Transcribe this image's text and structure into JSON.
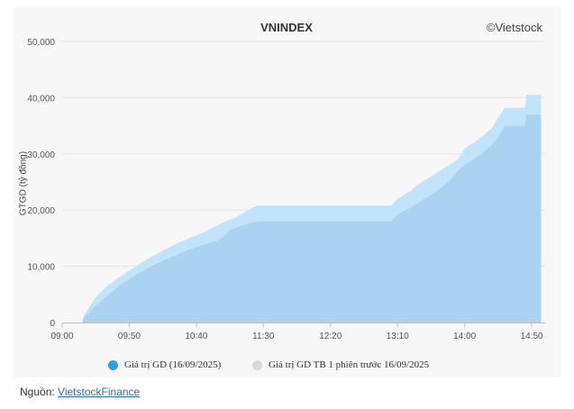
{
  "chart_data": {
    "type": "area",
    "title": "VNINDEX",
    "credit": "©Vietstock",
    "ylabel": "GTGD (tỷ đồng)",
    "xlabel": "",
    "ylim": [
      0,
      50000
    ],
    "yticks": [
      "0",
      "10,000",
      "20,000",
      "30,000",
      "40,000",
      "50,000"
    ],
    "xticks": [
      "09:00",
      "09:50",
      "10:40",
      "11:30",
      "12:20",
      "13:10",
      "14:00",
      "14:50"
    ],
    "grid": true,
    "legend_position": "bottom",
    "series": [
      {
        "name": "Giá trị GD (16/09/2025)",
        "color": "#a9d3f0",
        "points": [
          [
            "09:15",
            0
          ],
          [
            "09:16",
            800
          ],
          [
            "09:25",
            3000
          ],
          [
            "09:35",
            5000
          ],
          [
            "09:45",
            7000
          ],
          [
            "09:55",
            8500
          ],
          [
            "10:05",
            9800
          ],
          [
            "10:15",
            11000
          ],
          [
            "10:25",
            12000
          ],
          [
            "10:35",
            13000
          ],
          [
            "10:45",
            13800
          ],
          [
            "10:55",
            14500
          ],
          [
            "11:00",
            15200
          ],
          [
            "11:05",
            16500
          ],
          [
            "11:15",
            17300
          ],
          [
            "11:25",
            18000
          ],
          [
            "11:30",
            18000
          ],
          [
            "12:00",
            18000
          ],
          [
            "12:50",
            18000
          ],
          [
            "13:00",
            18000
          ],
          [
            "13:05",
            18000
          ],
          [
            "13:10",
            19200
          ],
          [
            "13:20",
            20500
          ],
          [
            "13:30",
            22000
          ],
          [
            "13:40",
            23500
          ],
          [
            "13:50",
            25500
          ],
          [
            "13:55",
            27000
          ],
          [
            "14:00",
            28000
          ],
          [
            "14:10",
            29500
          ],
          [
            "14:20",
            31500
          ],
          [
            "14:25",
            33000
          ],
          [
            "14:30",
            35000
          ],
          [
            "14:45",
            35000
          ],
          [
            "14:46",
            37000
          ],
          [
            "14:55",
            37000
          ],
          [
            "14:57",
            37000
          ]
        ]
      },
      {
        "name": "Giá trị GD TB 1 phiên trước 16/09/2025",
        "color": "#c2e4fb",
        "points": [
          [
            "09:15",
            0
          ],
          [
            "09:16",
            1200
          ],
          [
            "09:25",
            4500
          ],
          [
            "09:35",
            6800
          ],
          [
            "09:45",
            8500
          ],
          [
            "09:55",
            10000
          ],
          [
            "10:05",
            11500
          ],
          [
            "10:15",
            12800
          ],
          [
            "10:25",
            14000
          ],
          [
            "10:35",
            15000
          ],
          [
            "10:45",
            16000
          ],
          [
            "10:55",
            17200
          ],
          [
            "11:00",
            17800
          ],
          [
            "11:10",
            18800
          ],
          [
            "11:20",
            20200
          ],
          [
            "11:25",
            20800
          ],
          [
            "11:30",
            20800
          ],
          [
            "12:00",
            20800
          ],
          [
            "13:00",
            20800
          ],
          [
            "13:05",
            20800
          ],
          [
            "13:10",
            22000
          ],
          [
            "13:20",
            23500
          ],
          [
            "13:25",
            24500
          ],
          [
            "13:35",
            26000
          ],
          [
            "13:45",
            27500
          ],
          [
            "13:55",
            29000
          ],
          [
            "14:00",
            31000
          ],
          [
            "14:10",
            32500
          ],
          [
            "14:20",
            34500
          ],
          [
            "14:25",
            36500
          ],
          [
            "14:30",
            38200
          ],
          [
            "14:45",
            38200
          ],
          [
            "14:46",
            40500
          ],
          [
            "14:57",
            40500
          ]
        ]
      }
    ]
  },
  "source": {
    "label": "Nguồn:",
    "link_text": "VietstockFinance"
  }
}
